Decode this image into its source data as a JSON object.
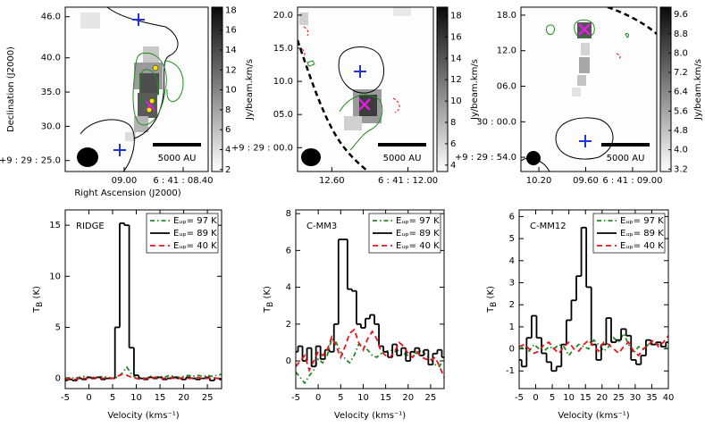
{
  "chart_data": [
    {
      "type": "image",
      "xlabel": "Right Ascension (J2000)",
      "ylabel": "Declination (J2000)",
      "colorbar_label": "Jy/beam.km/s",
      "annotation": "5000 AU",
      "xlim": [
        9.6,
        8.145
      ],
      "xticks": [
        {
          "value": 9.0,
          "label": "09.00"
        },
        {
          "value": 8.4,
          "label": "6 : 41 : 08.40"
        }
      ],
      "ylim": [
        23.4,
        47.4
      ],
      "yticks": [
        {
          "value": 46,
          "label": "46.0"
        },
        {
          "value": 40,
          "label": "40.0"
        },
        {
          "value": 35,
          "label": "35.0"
        },
        {
          "value": 30,
          "label": "30.0"
        },
        {
          "value": 25,
          "label": "+9 : 29 : 25.0"
        }
      ],
      "clim": [
        1.8,
        18.3
      ],
      "cticks": [
        2,
        4,
        6,
        8,
        10,
        12,
        14,
        16,
        18
      ]
    },
    {
      "type": "image",
      "colorbar_label": "Jy/beam.km/s",
      "annotation": "5000 AU",
      "xlim": [
        12.87,
        11.8
      ],
      "xticks": [
        {
          "value": 12.6,
          "label": "12.60"
        },
        {
          "value": 12.0,
          "label": "6 : 41 : 12.00"
        }
      ],
      "ylim": [
        -3.6,
        21.2
      ],
      "yticks": [
        {
          "value": 20,
          "label": "20.0"
        },
        {
          "value": 15,
          "label": "15.0"
        },
        {
          "value": 10,
          "label": "10.0"
        },
        {
          "value": 5,
          "label": "05.0"
        },
        {
          "value": 0,
          "label": "+9 : 29 : 00.0"
        }
      ],
      "clim": [
        3.4,
        18.8
      ],
      "cticks": [
        4,
        6,
        8,
        10,
        12,
        14,
        16,
        18
      ]
    },
    {
      "type": "image",
      "colorbar_label": "Jy/beam.km/s",
      "annotation": "5000 AU",
      "xlim": [
        10.43,
        8.69
      ],
      "xticks": [
        {
          "value": 10.2,
          "label": "10.20"
        },
        {
          "value": 9.6,
          "label": "09.60"
        },
        {
          "value": 9.0,
          "label": "6 : 41 : 09.00"
        }
      ],
      "ylim": [
        -8.4,
        19.35
      ],
      "yticks": [
        {
          "value": 18,
          "label": "18.0"
        },
        {
          "value": 12,
          "label": "12.0"
        },
        {
          "value": 6,
          "label": "06.0"
        },
        {
          "value": 0,
          "label": "30 : 00.0"
        },
        {
          "value": -6,
          "label": "+9 : 29 : 54.0"
        }
      ],
      "clim": [
        3.1,
        9.9
      ],
      "cticks": [
        3.2,
        {
          "value": 4,
          "label": "4.0"
        },
        4.8,
        5.6,
        6.4,
        7.2,
        {
          "value": 8,
          "label": "8.0"
        },
        8.8,
        9.6
      ]
    },
    {
      "type": "line",
      "label": "RIDGE",
      "xlabel": "Velocity (kms⁻¹)",
      "ylabel": {
        "text": "T",
        "sub": "B",
        "rest": " (K)"
      },
      "xlim": [
        -5,
        28
      ],
      "xticks": [
        -5,
        0,
        5,
        10,
        15,
        20,
        25
      ],
      "ylim": [
        -1,
        16.5
      ],
      "yticks": [
        0,
        5,
        10,
        15
      ],
      "legend": "upper right",
      "x": [
        -5,
        -4,
        -3,
        -2,
        -1,
        0,
        1,
        2,
        3,
        4,
        5,
        6,
        7,
        8,
        9,
        10,
        11,
        12,
        13,
        14,
        15,
        16,
        17,
        18,
        19,
        20,
        21,
        22,
        23,
        24,
        25,
        26,
        27,
        28
      ],
      "series": [
        {
          "name": "Eᵤₚ= 97 K",
          "color": "#228b22",
          "style": "dashdot",
          "values": [
            0,
            0.1,
            0,
            0.1,
            0.2,
            0.1,
            0,
            0.1,
            0.2,
            0.1,
            0,
            0.1,
            0.5,
            1.1,
            0.4,
            0,
            0.1,
            0,
            0.2,
            0.1,
            0.2,
            0.1,
            0.3,
            0.2,
            0.1,
            0.2,
            0.3,
            0.2,
            0.3,
            0.2,
            0.3,
            0.2,
            0.3,
            0.4
          ]
        },
        {
          "name": "Eᵤₚ= 89 K",
          "color": "#000000",
          "style": "steps",
          "values": [
            -0.2,
            -0.1,
            -0.2,
            0,
            -0.1,
            0.1,
            0,
            0.1,
            -0.1,
            0,
            0,
            5,
            15.2,
            15,
            3,
            0.3,
            0,
            -0.1,
            0.1,
            0,
            0.1,
            -0.1,
            0,
            0.1,
            0,
            -0.1,
            0.1,
            0,
            -0.1,
            0,
            0.1,
            -0.2,
            0,
            -0.1
          ]
        },
        {
          "name": "Eᵤₚ= 40 K",
          "color": "#e8141e",
          "style": "dashed",
          "values": [
            -0.1,
            0,
            -0.1,
            0,
            0,
            0,
            0.1,
            0,
            0,
            0.1,
            0,
            0.2,
            0.4,
            0.3,
            0.1,
            0,
            -0.1,
            0,
            0,
            0.1,
            0,
            0,
            0.1,
            0,
            0,
            0.1,
            0,
            0,
            0.1,
            0,
            0,
            0.1,
            0,
            0
          ]
        }
      ]
    },
    {
      "type": "line",
      "label": "C-MM3",
      "xlabel": "Velocity (kms⁻¹)",
      "ylabel": {
        "text": "T",
        "sub": "B",
        "rest": " (K)"
      },
      "xlim": [
        -5,
        28
      ],
      "xticks": [
        -5,
        0,
        5,
        10,
        15,
        20,
        25
      ],
      "ylim": [
        -1.5,
        8.2
      ],
      "yticks": [
        0,
        2,
        4,
        6,
        8
      ],
      "legend": "upper right",
      "x": [
        -5,
        -4,
        -3,
        -2,
        -1,
        0,
        1,
        2,
        3,
        4,
        5,
        6,
        7,
        8,
        9,
        10,
        11,
        12,
        13,
        14,
        15,
        16,
        17,
        18,
        19,
        20,
        21,
        22,
        23,
        24,
        25,
        26,
        27,
        28
      ],
      "series": [
        {
          "name": "Eᵤₚ= 97 K",
          "color": "#228b22",
          "style": "dashdot",
          "values": [
            -0.6,
            -0.9,
            -1.2,
            -0.8,
            -0.5,
            0.1,
            -0.1,
            0.3,
            1.2,
            1.0,
            0.5,
            0.1,
            -0.1,
            0.3,
            0.9,
            0.8,
            0.6,
            0.3,
            0.2,
            0.4,
            0.5,
            0.6,
            0.5,
            0.6,
            0.4,
            0.3,
            0.5,
            0.4,
            0.6,
            0.3,
            0.1,
            -0.2,
            -0.3,
            0.2
          ]
        },
        {
          "name": "Eᵤₚ= 89 K",
          "color": "#000000",
          "style": "steps",
          "values": [
            0.5,
            0.8,
            0,
            0.7,
            -0.3,
            0.8,
            0.1,
            0.6,
            0.5,
            2,
            6.6,
            6.6,
            3.9,
            3.8,
            2.0,
            1.8,
            2.3,
            2.5,
            2.0,
            0.8,
            0.5,
            0.2,
            0.9,
            0.3,
            0.7,
            0,
            0.5,
            0.7,
            0.3,
            0.6,
            -0.2,
            0.4,
            0.6,
            0.2
          ]
        },
        {
          "name": "Eᵤₚ= 40 K",
          "color": "#e8141e",
          "style": "dashed",
          "values": [
            -0.3,
            0,
            0.3,
            -0.5,
            0,
            0.5,
            0.3,
            0.6,
            1.3,
            0.8,
            0.2,
            0.8,
            1.5,
            1.7,
            1.0,
            0.6,
            1.2,
            1.6,
            1.2,
            0.5,
            0.3,
            0.2,
            0.5,
            1.0,
            0.8,
            0.4,
            0.2,
            0.5,
            0.2,
            0.1,
            0,
            0.2,
            -0.3,
            -0.9
          ]
        }
      ]
    },
    {
      "type": "line",
      "label": "C-MM12",
      "xlabel": "Velocity (kms⁻¹)",
      "ylabel": {
        "text": "T",
        "sub": "B",
        "rest": " (K)"
      },
      "xlim": [
        -5,
        40
      ],
      "xticks": [
        -5,
        0,
        5,
        10,
        15,
        20,
        25,
        30,
        35,
        40
      ],
      "ylim": [
        -1.8,
        6.3
      ],
      "yticks": [
        -1,
        0,
        1,
        2,
        3,
        4,
        5,
        6
      ],
      "legend": "upper right",
      "x": [
        -5,
        -3.5,
        -2,
        -0.5,
        1,
        2.5,
        4,
        5.5,
        7,
        8.5,
        10,
        11.5,
        13,
        14.5,
        16,
        17.5,
        19,
        20.5,
        22,
        23.5,
        25,
        26.5,
        28,
        29.5,
        31,
        32.5,
        34,
        35.5,
        37,
        38.5,
        40
      ],
      "series": [
        {
          "name": "Eᵤₚ= 97 K",
          "color": "#228b22",
          "style": "dashdot",
          "values": [
            0,
            0.1,
            -0.1,
            0.2,
            0,
            -0.1,
            0.1,
            0,
            0.2,
            0.1,
            -0.3,
            0,
            0.2,
            0.1,
            0,
            0.4,
            0.2,
            -0.1,
            0.1,
            0.5,
            0.3,
            0.7,
            0.2,
            -0.2,
            0.1,
            0,
            0.2,
            0.3,
            0.2,
            0.1,
            0
          ]
        },
        {
          "name": "Eᵤₚ= 89 K",
          "color": "#000000",
          "style": "steps",
          "values": [
            -0.5,
            -0.8,
            0.5,
            1.5,
            0.5,
            -0.2,
            -0.6,
            -1.0,
            -0.8,
            0.2,
            1.3,
            2.2,
            3.3,
            5.5,
            2.8,
            0.2,
            -0.5,
            0.2,
            1.4,
            0.3,
            0.4,
            0.9,
            0.6,
            -0.5,
            -0.7,
            -0.3,
            0.4,
            0.2,
            0.3,
            0.1,
            0.3
          ]
        },
        {
          "name": "Eᵤₚ= 40 K",
          "color": "#e8141e",
          "style": "dashed",
          "values": [
            0.1,
            0.2,
            0,
            -0.2,
            -0.1,
            0.2,
            0.3,
            0,
            -0.2,
            0.1,
            0.3,
            0,
            -0.1,
            0.2,
            0.4,
            0.1,
            -0.1,
            0.3,
            0.2,
            0,
            -0.2,
            0.1,
            0.3,
            -0.1,
            -0.3,
            0,
            0.2,
            0.4,
            0.1,
            0.3,
            0.6
          ]
        }
      ]
    }
  ]
}
